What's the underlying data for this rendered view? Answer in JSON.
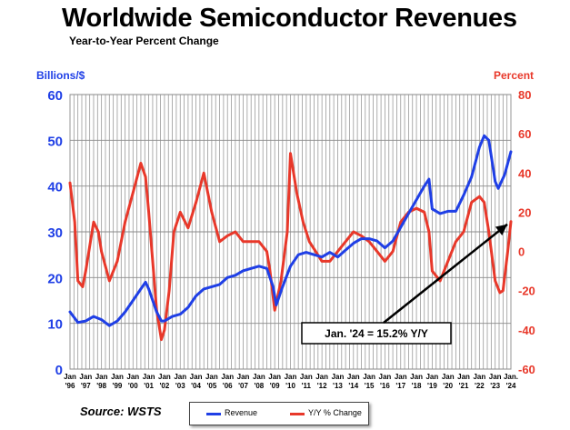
{
  "title": "Worldwide Semiconductor Revenues",
  "subtitle": "Year-to-Year Percent Change",
  "source": "Source: WSTS",
  "annotation": "Jan. '24 = 15.2% Y/Y",
  "colors": {
    "revenue": "#1f3fe6",
    "change": "#e8382a"
  },
  "chart_data": {
    "type": "line",
    "ylabel_left": "Billions/$",
    "ylabel_right": "Percent",
    "y_left_ticks": [
      "0",
      "10",
      "20",
      "30",
      "40",
      "50",
      "60"
    ],
    "y_right_ticks": [
      "-60",
      "-40",
      "-20",
      "0",
      "20",
      "40",
      "60",
      "80"
    ],
    "ylim_left": [
      0,
      60
    ],
    "ylim_right": [
      -60,
      80
    ],
    "x_ticks": [
      {
        "top": "Jan",
        "bottom": "'96"
      },
      {
        "top": "Jan",
        "bottom": "'97"
      },
      {
        "top": "Jan",
        "bottom": "'98"
      },
      {
        "top": "Jan",
        "bottom": "'99"
      },
      {
        "top": "Jan",
        "bottom": "'00"
      },
      {
        "top": "Jan",
        "bottom": "'01"
      },
      {
        "top": "Jan",
        "bottom": "'02"
      },
      {
        "top": "Jan",
        "bottom": "'03"
      },
      {
        "top": "Jan",
        "bottom": "'04"
      },
      {
        "top": "Jan",
        "bottom": "'05"
      },
      {
        "top": "Jan",
        "bottom": "'06"
      },
      {
        "top": "Jan",
        "bottom": "'07"
      },
      {
        "top": "Jan",
        "bottom": "'08"
      },
      {
        "top": "Jan",
        "bottom": "'09"
      },
      {
        "top": "Jan",
        "bottom": "'10"
      },
      {
        "top": "Jan",
        "bottom": "'11"
      },
      {
        "top": "Jan",
        "bottom": "'12"
      },
      {
        "top": "Jan",
        "bottom": "'13"
      },
      {
        "top": "Jan",
        "bottom": "'14"
      },
      {
        "top": "Jan",
        "bottom": "'15"
      },
      {
        "top": "Jan",
        "bottom": "'16"
      },
      {
        "top": "Jan",
        "bottom": "'17"
      },
      {
        "top": "Jan",
        "bottom": "'18"
      },
      {
        "top": "Jan",
        "bottom": "'19"
      },
      {
        "top": "Jan",
        "bottom": "'20"
      },
      {
        "top": "Jan",
        "bottom": "'21"
      },
      {
        "top": "Jan",
        "bottom": "'22"
      },
      {
        "top": "Jan",
        "bottom": "'23"
      },
      {
        "top": "Jan.",
        "bottom": "'24"
      }
    ],
    "grid": true,
    "legend_position": "bottom-center",
    "series": [
      {
        "name": "Revenue",
        "axis": "left",
        "points": [
          [
            1996.0,
            12.5
          ],
          [
            1996.5,
            10.2
          ],
          [
            1997.0,
            10.5
          ],
          [
            1997.5,
            11.5
          ],
          [
            1998.0,
            10.8
          ],
          [
            1998.5,
            9.5
          ],
          [
            1999.0,
            10.5
          ],
          [
            1999.5,
            12.5
          ],
          [
            2000.0,
            15.0
          ],
          [
            2000.5,
            17.5
          ],
          [
            2000.8,
            19.0
          ],
          [
            2001.0,
            17.5
          ],
          [
            2001.5,
            12.5
          ],
          [
            2001.8,
            10.5
          ],
          [
            2002.0,
            10.5
          ],
          [
            2002.5,
            11.5
          ],
          [
            2003.0,
            12.0
          ],
          [
            2003.5,
            13.5
          ],
          [
            2004.0,
            16.0
          ],
          [
            2004.5,
            17.5
          ],
          [
            2005.0,
            18.0
          ],
          [
            2005.5,
            18.5
          ],
          [
            2006.0,
            20.0
          ],
          [
            2006.5,
            20.5
          ],
          [
            2007.0,
            21.5
          ],
          [
            2007.5,
            22.0
          ],
          [
            2008.0,
            22.5
          ],
          [
            2008.5,
            22.0
          ],
          [
            2008.9,
            18.0
          ],
          [
            2009.1,
            14.0
          ],
          [
            2009.5,
            18.0
          ],
          [
            2010.0,
            22.5
          ],
          [
            2010.5,
            25.0
          ],
          [
            2011.0,
            25.5
          ],
          [
            2011.5,
            25.0
          ],
          [
            2012.0,
            24.5
          ],
          [
            2012.5,
            25.5
          ],
          [
            2013.0,
            24.5
          ],
          [
            2013.5,
            26.0
          ],
          [
            2014.0,
            27.5
          ],
          [
            2014.5,
            28.5
          ],
          [
            2015.0,
            28.5
          ],
          [
            2015.5,
            28.0
          ],
          [
            2016.0,
            26.5
          ],
          [
            2016.5,
            28.0
          ],
          [
            2017.0,
            31.0
          ],
          [
            2017.5,
            34.0
          ],
          [
            2018.0,
            37.0
          ],
          [
            2018.5,
            40.0
          ],
          [
            2018.8,
            41.5
          ],
          [
            2019.0,
            35.0
          ],
          [
            2019.5,
            34.0
          ],
          [
            2020.0,
            34.5
          ],
          [
            2020.5,
            34.5
          ],
          [
            2021.0,
            38.0
          ],
          [
            2021.5,
            42.0
          ],
          [
            2022.0,
            48.5
          ],
          [
            2022.3,
            51.0
          ],
          [
            2022.6,
            50.0
          ],
          [
            2023.0,
            41.0
          ],
          [
            2023.2,
            39.5
          ],
          [
            2023.6,
            42.5
          ],
          [
            2024.0,
            47.5
          ]
        ]
      },
      {
        "name": "Y/Y % Change",
        "axis": "right",
        "points": [
          [
            1996.0,
            35.0
          ],
          [
            1996.3,
            15.0
          ],
          [
            1996.5,
            -15.0
          ],
          [
            1996.8,
            -18.0
          ],
          [
            1997.0,
            -10.0
          ],
          [
            1997.3,
            5.0
          ],
          [
            1997.5,
            15.0
          ],
          [
            1997.8,
            10.0
          ],
          [
            1998.0,
            0.0
          ],
          [
            1998.5,
            -15.0
          ],
          [
            1999.0,
            -5.0
          ],
          [
            1999.5,
            15.0
          ],
          [
            2000.0,
            30.0
          ],
          [
            2000.5,
            45.0
          ],
          [
            2000.8,
            38.0
          ],
          [
            2001.0,
            20.0
          ],
          [
            2001.5,
            -30.0
          ],
          [
            2001.8,
            -45.0
          ],
          [
            2002.0,
            -40.0
          ],
          [
            2002.3,
            -20.0
          ],
          [
            2002.6,
            10.0
          ],
          [
            2003.0,
            20.0
          ],
          [
            2003.5,
            12.0
          ],
          [
            2004.0,
            25.0
          ],
          [
            2004.5,
            40.0
          ],
          [
            2005.0,
            20.0
          ],
          [
            2005.5,
            5.0
          ],
          [
            2006.0,
            8.0
          ],
          [
            2006.5,
            10.0
          ],
          [
            2007.0,
            5.0
          ],
          [
            2007.5,
            5.0
          ],
          [
            2008.0,
            5.0
          ],
          [
            2008.5,
            0.0
          ],
          [
            2008.7,
            -10.0
          ],
          [
            2009.0,
            -30.0
          ],
          [
            2009.4,
            -15.0
          ],
          [
            2009.8,
            10.0
          ],
          [
            2010.0,
            50.0
          ],
          [
            2010.4,
            30.0
          ],
          [
            2010.8,
            15.0
          ],
          [
            2011.2,
            5.0
          ],
          [
            2011.6,
            0.0
          ],
          [
            2012.0,
            -5.0
          ],
          [
            2012.5,
            -5.0
          ],
          [
            2013.0,
            0.0
          ],
          [
            2013.5,
            5.0
          ],
          [
            2014.0,
            10.0
          ],
          [
            2014.5,
            8.0
          ],
          [
            2015.0,
            5.0
          ],
          [
            2015.5,
            0.0
          ],
          [
            2016.0,
            -5.0
          ],
          [
            2016.5,
            0.0
          ],
          [
            2017.0,
            15.0
          ],
          [
            2017.5,
            20.0
          ],
          [
            2018.0,
            22.0
          ],
          [
            2018.5,
            20.0
          ],
          [
            2018.8,
            10.0
          ],
          [
            2019.0,
            -10.0
          ],
          [
            2019.5,
            -15.0
          ],
          [
            2020.0,
            -5.0
          ],
          [
            2020.5,
            5.0
          ],
          [
            2021.0,
            10.0
          ],
          [
            2021.5,
            25.0
          ],
          [
            2022.0,
            28.0
          ],
          [
            2022.3,
            25.0
          ],
          [
            2022.6,
            10.0
          ],
          [
            2023.0,
            -15.0
          ],
          [
            2023.3,
            -21.0
          ],
          [
            2023.5,
            -20.0
          ],
          [
            2023.8,
            0.0
          ],
          [
            2024.0,
            15.2
          ]
        ]
      }
    ]
  }
}
